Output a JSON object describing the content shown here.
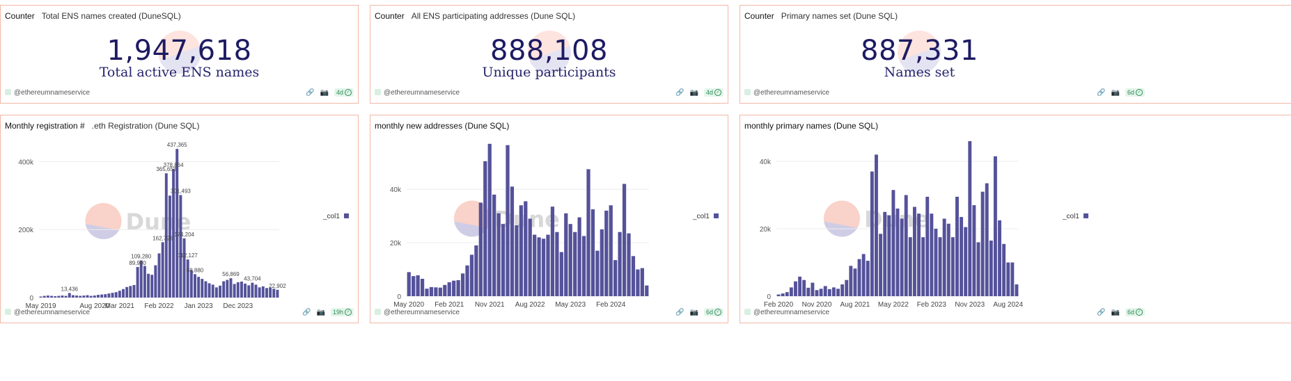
{
  "counters": [
    {
      "kind": "Counter",
      "title": "Total ENS names created (DuneSQL)",
      "value": "1,947,618",
      "subtitle": "Total active ENS names",
      "owner": "@ethereumnameservice",
      "age": "4d"
    },
    {
      "kind": "Counter",
      "title": "All ENS participating addresses (Dune SQL)",
      "value": "888,108",
      "subtitle": "Unique participants",
      "owner": "@ethereumnameservice",
      "age": "4d"
    },
    {
      "kind": "Counter",
      "title": "Primary names set (Dune SQL)",
      "value": "887,331",
      "subtitle": "Names set",
      "owner": "@ethereumnameservice",
      "age": "6d"
    }
  ],
  "charts_meta": [
    {
      "kind": "Monthly registration #",
      "title": ".eth Registration (Dune SQL)",
      "owner": "@ethereumnameservice",
      "age": "19h",
      "legend": "_col1"
    },
    {
      "kind": "",
      "title": "monthly new addresses (Dune SQL)",
      "owner": "@ethereumnameservice",
      "age": "6d",
      "legend": "_col1"
    },
    {
      "kind": "",
      "title": "monthly primary names (Dune SQL)",
      "owner": "@ethereumnameservice",
      "age": "6d",
      "legend": "_col1"
    }
  ],
  "watermark": "Dune",
  "colors": {
    "bar": "#55529a",
    "border": "#f2b7a7",
    "counter": "#1d1b63",
    "badge": "#2e8b57"
  },
  "icons": [
    "link-icon",
    "camera-icon",
    "check-icon"
  ],
  "chart_data": [
    {
      "type": "bar",
      "ylim": [
        0,
        450000
      ],
      "y_ticks": [
        0,
        200000,
        400000
      ],
      "y_tick_labels": [
        "0",
        "200k",
        "400k"
      ],
      "x_tick_labels": [
        "May 2019",
        "Aug 2020",
        "Mar 2021",
        "Feb 2022",
        "Jan 2023",
        "Dec 2023"
      ],
      "x_tick_index": [
        0,
        15,
        22,
        33,
        44,
        55
      ],
      "series": [
        {
          "name": "_col1",
          "values": [
            3000,
            5000,
            6000,
            5000,
            4000,
            5000,
            6000,
            5000,
            13436,
            7000,
            6000,
            5000,
            6000,
            7000,
            5000,
            6000,
            8000,
            9000,
            10000,
            12000,
            14000,
            16000,
            20000,
            25000,
            31000,
            34000,
            37000,
            89900,
            109280,
            93000,
            70000,
            67000,
            95000,
            130000,
            162796,
            365653,
            300000,
            378864,
            437365,
            301493,
            174204,
            112127,
            80000,
            68880,
            61000,
            55000,
            48000,
            42000,
            38000,
            30000,
            35000,
            48000,
            52000,
            56869,
            40000,
            45000,
            47000,
            41000,
            36000,
            43704,
            38000,
            30000,
            33000,
            28000,
            29000,
            26000,
            22902
          ]
        }
      ],
      "data_labels": [
        {
          "i": 8,
          "text": "13,436"
        },
        {
          "i": 28,
          "text": "109,280"
        },
        {
          "i": 27,
          "text": "89,900"
        },
        {
          "i": 34,
          "text": "162,796"
        },
        {
          "i": 35,
          "text": "365,653"
        },
        {
          "i": 37,
          "text": "378,864"
        },
        {
          "i": 38,
          "text": "437,365"
        },
        {
          "i": 39,
          "text": "301,493"
        },
        {
          "i": 40,
          "text": "174,204"
        },
        {
          "i": 41,
          "text": "112,127"
        },
        {
          "i": 43,
          "text": "68,880"
        },
        {
          "i": 53,
          "text": "56,869"
        },
        {
          "i": 59,
          "text": "43,704"
        },
        {
          "i": 66,
          "text": "22,902"
        }
      ]
    },
    {
      "type": "bar",
      "ylim": [
        0,
        58000
      ],
      "y_ticks": [
        0,
        20000,
        40000
      ],
      "y_tick_labels": [
        "0",
        "20k",
        "40k"
      ],
      "x_tick_labels": [
        "May 2020",
        "Feb 2021",
        "Nov 2021",
        "Aug 2022",
        "May 2023",
        "Feb 2024"
      ],
      "x_tick_index": [
        0,
        9,
        18,
        27,
        36,
        45
      ],
      "series": [
        {
          "name": "_col1",
          "values": [
            9000,
            7500,
            7800,
            6500,
            2800,
            3400,
            3300,
            3200,
            4200,
            5200,
            5800,
            6000,
            8500,
            11500,
            15500,
            19000,
            35000,
            50500,
            57000,
            38000,
            31000,
            27000,
            56500,
            41000,
            26500,
            34000,
            35500,
            29000,
            23000,
            22000,
            21500,
            23000,
            33500,
            24000,
            16500,
            31000,
            27000,
            24000,
            29500,
            22500,
            47500,
            32500,
            17000,
            25000,
            32000,
            34000,
            13500,
            24000,
            42000,
            23500,
            15000,
            10000,
            10500,
            4000
          ]
        }
      ]
    },
    {
      "type": "bar",
      "ylim": [
        0,
        46000
      ],
      "y_ticks": [
        0,
        20000,
        40000
      ],
      "y_tick_labels": [
        "0",
        "20k",
        "40k"
      ],
      "x_tick_labels": [
        "Feb 2020",
        "Nov 2020",
        "Aug 2021",
        "May 2022",
        "Feb 2023",
        "Nov 2023",
        "Aug 2024"
      ],
      "x_tick_index": [
        0,
        9,
        18,
        27,
        36,
        45,
        54
      ],
      "series": [
        {
          "name": "_col1",
          "values": [
            500,
            800,
            1200,
            2600,
            4400,
            5800,
            4800,
            2500,
            4000,
            1800,
            2200,
            3000,
            2100,
            2600,
            2200,
            3500,
            4800,
            9000,
            8200,
            11000,
            12500,
            10500,
            37000,
            42000,
            18500,
            25000,
            24000,
            31500,
            26000,
            23000,
            30000,
            17500,
            26500,
            24500,
            17500,
            29500,
            24500,
            20000,
            17500,
            23000,
            21500,
            17500,
            29500,
            23500,
            20500,
            46000,
            27000,
            16000,
            31000,
            33500,
            16500,
            41500,
            22500,
            15500,
            10000,
            10000,
            3500
          ]
        }
      ]
    }
  ]
}
